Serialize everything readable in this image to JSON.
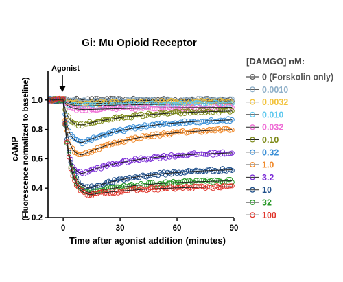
{
  "chart_data": {
    "type": "scatter",
    "title": "Gi: Mu Opioid Receptor",
    "xlabel": "Time after agonist addition (minutes)",
    "ylabel": "cAMP",
    "ylabel_sub": "(Fluorescence normalized to baseline)",
    "xlim": [
      -8,
      90
    ],
    "ylim": [
      0.2,
      1.2
    ],
    "x_ticks": [
      0,
      30,
      60,
      90
    ],
    "y_ticks": [
      0.2,
      0.4,
      0.6,
      0.8,
      1.0
    ],
    "grid": false,
    "annotation": {
      "text": "Agonist",
      "x": -2
    },
    "legend": {
      "title": "[DAMGO] nM:",
      "placement": "right"
    },
    "series": [
      {
        "name": "0 (Forskolin only)",
        "color": "#555555",
        "min_value": 1.0,
        "nadir_time": 12,
        "recovery_time_constant": 40,
        "plateau_value": 1.0
      },
      {
        "name": "0.0010",
        "color": "#8fb0c9",
        "min_value": 0.99,
        "nadir_time": 12,
        "recovery_time_constant": 40,
        "plateau_value": 1.0
      },
      {
        "name": "0.0032",
        "color": "#f2c23a",
        "min_value": 0.975,
        "nadir_time": 12,
        "recovery_time_constant": 40,
        "plateau_value": 0.99
      },
      {
        "name": "0.010",
        "color": "#5ec8ee",
        "min_value": 0.96,
        "nadir_time": 12,
        "recovery_time_constant": 40,
        "plateau_value": 0.975
      },
      {
        "name": "0.032",
        "color": "#ef6fd6",
        "min_value": 0.935,
        "nadir_time": 12,
        "recovery_time_constant": 40,
        "plateau_value": 0.95
      },
      {
        "name": "0.10",
        "color": "#7d8a18",
        "min_value": 0.83,
        "nadir_time": 10,
        "recovery_time_constant": 30,
        "plateau_value": 0.925
      },
      {
        "name": "0.32",
        "color": "#3b8fd6",
        "min_value": 0.71,
        "nadir_time": 10,
        "recovery_time_constant": 30,
        "plateau_value": 0.865
      },
      {
        "name": "1.0",
        "color": "#f08a2c",
        "min_value": 0.625,
        "nadir_time": 10,
        "recovery_time_constant": 30,
        "plateau_value": 0.8
      },
      {
        "name": "3.2",
        "color": "#7a2bd6",
        "min_value": 0.5,
        "nadir_time": 10,
        "recovery_time_constant": 30,
        "plateau_value": 0.64
      },
      {
        "name": "10",
        "color": "#1f4f8a",
        "min_value": 0.4,
        "nadir_time": 14,
        "recovery_time_constant": 30,
        "plateau_value": 0.525
      },
      {
        "name": "32",
        "color": "#2a9a2a",
        "min_value": 0.37,
        "nadir_time": 14,
        "recovery_time_constant": 30,
        "plateau_value": 0.45
      },
      {
        "name": "100",
        "color": "#e0352b",
        "min_value": 0.355,
        "nadir_time": 14,
        "recovery_time_constant": 30,
        "plateau_value": 0.41
      }
    ]
  }
}
